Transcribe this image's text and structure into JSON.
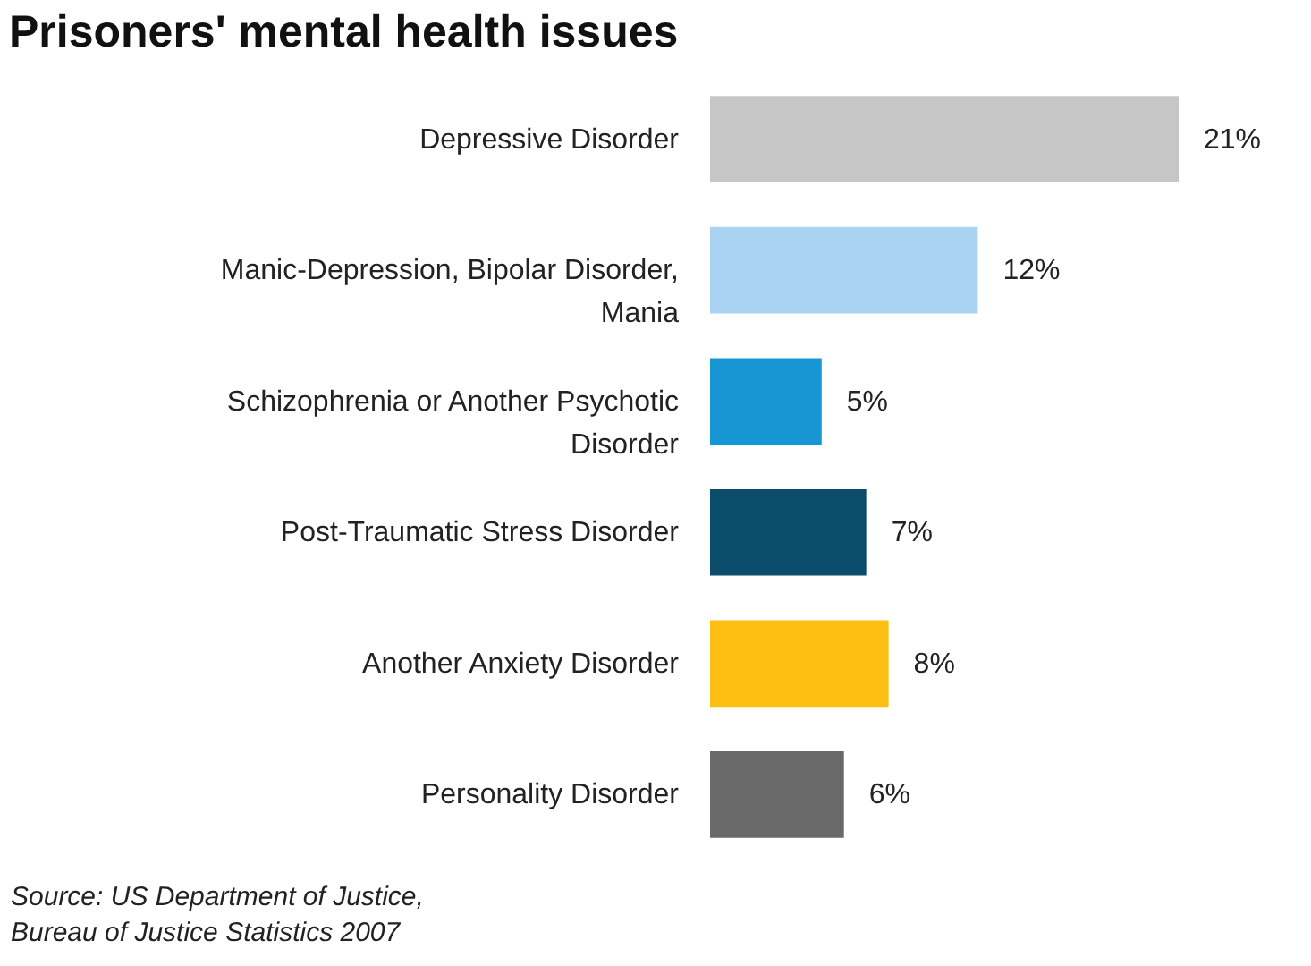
{
  "chart_data": {
    "type": "bar",
    "orientation": "horizontal",
    "title": "Prisoners' mental health issues",
    "categories": [
      "Depressive Disorder",
      "Manic-Depression, Bipolar Disorder, Mania",
      "Schizophrenia or Another Psychotic Disorder",
      "Post-Traumatic Stress Disorder",
      "Another Anxiety Disorder",
      "Personality Disorder"
    ],
    "values": [
      21,
      12,
      5,
      7,
      8,
      6
    ],
    "colors": [
      "#c6c6c6",
      "#a9d3f0",
      "#1696d2",
      "#0a4c6a",
      "#fdbf11",
      "#696969"
    ],
    "value_labels": [
      "21%",
      "12%",
      "5%",
      "7%",
      "8%",
      "6%"
    ],
    "annotations": [
      "Source: US Department of Justice, Bureau of Justice Statistics 2007"
    ]
  }
}
